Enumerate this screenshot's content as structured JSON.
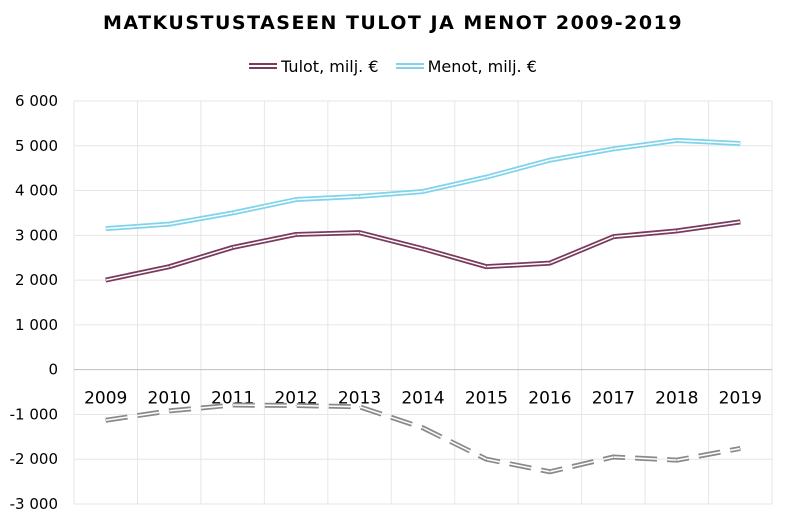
{
  "chart_data": {
    "type": "line",
    "title": "MATKUSTUSTASEEN TULOT JA MENOT 2009-2019",
    "categories": [
      "2009",
      "2010",
      "2011",
      "2012",
      "2013",
      "2014",
      "2015",
      "2016",
      "2017",
      "2018",
      "2019"
    ],
    "series": [
      {
        "name": "Tulot, milj. €",
        "color": "#7a3a5e",
        "values": [
          2000,
          2300,
          2730,
          3020,
          3060,
          2700,
          2300,
          2380,
          2970,
          3100,
          3300
        ]
      },
      {
        "name": "Menot, milj. €",
        "color": "#7fd3ea",
        "values": [
          3150,
          3250,
          3500,
          3800,
          3870,
          3980,
          4300,
          4680,
          4930,
          5120,
          5050
        ]
      },
      {
        "name": "",
        "color": "#8a8a8a",
        "dashed": true,
        "values": [
          -1130,
          -920,
          -790,
          -800,
          -830,
          -1300,
          -2000,
          -2280,
          -1950,
          -2020,
          -1760
        ]
      }
    ],
    "ylim": [
      -3000,
      6000
    ],
    "yticks": [
      {
        "value": 6000,
        "label": "6 000"
      },
      {
        "value": 5000,
        "label": "5 000"
      },
      {
        "value": 4000,
        "label": "4 000"
      },
      {
        "value": 3000,
        "label": "3 000"
      },
      {
        "value": 2000,
        "label": "2 000"
      },
      {
        "value": 1000,
        "label": "1 000"
      },
      {
        "value": 0,
        "label": "0"
      },
      {
        "value": -1000,
        "label": "-1 000"
      },
      {
        "value": -2000,
        "label": "-2 000"
      },
      {
        "value": -3000,
        "label": "-3 000"
      }
    ],
    "grid": true,
    "legend_position": "top-center",
    "xlabel": "",
    "ylabel": ""
  }
}
